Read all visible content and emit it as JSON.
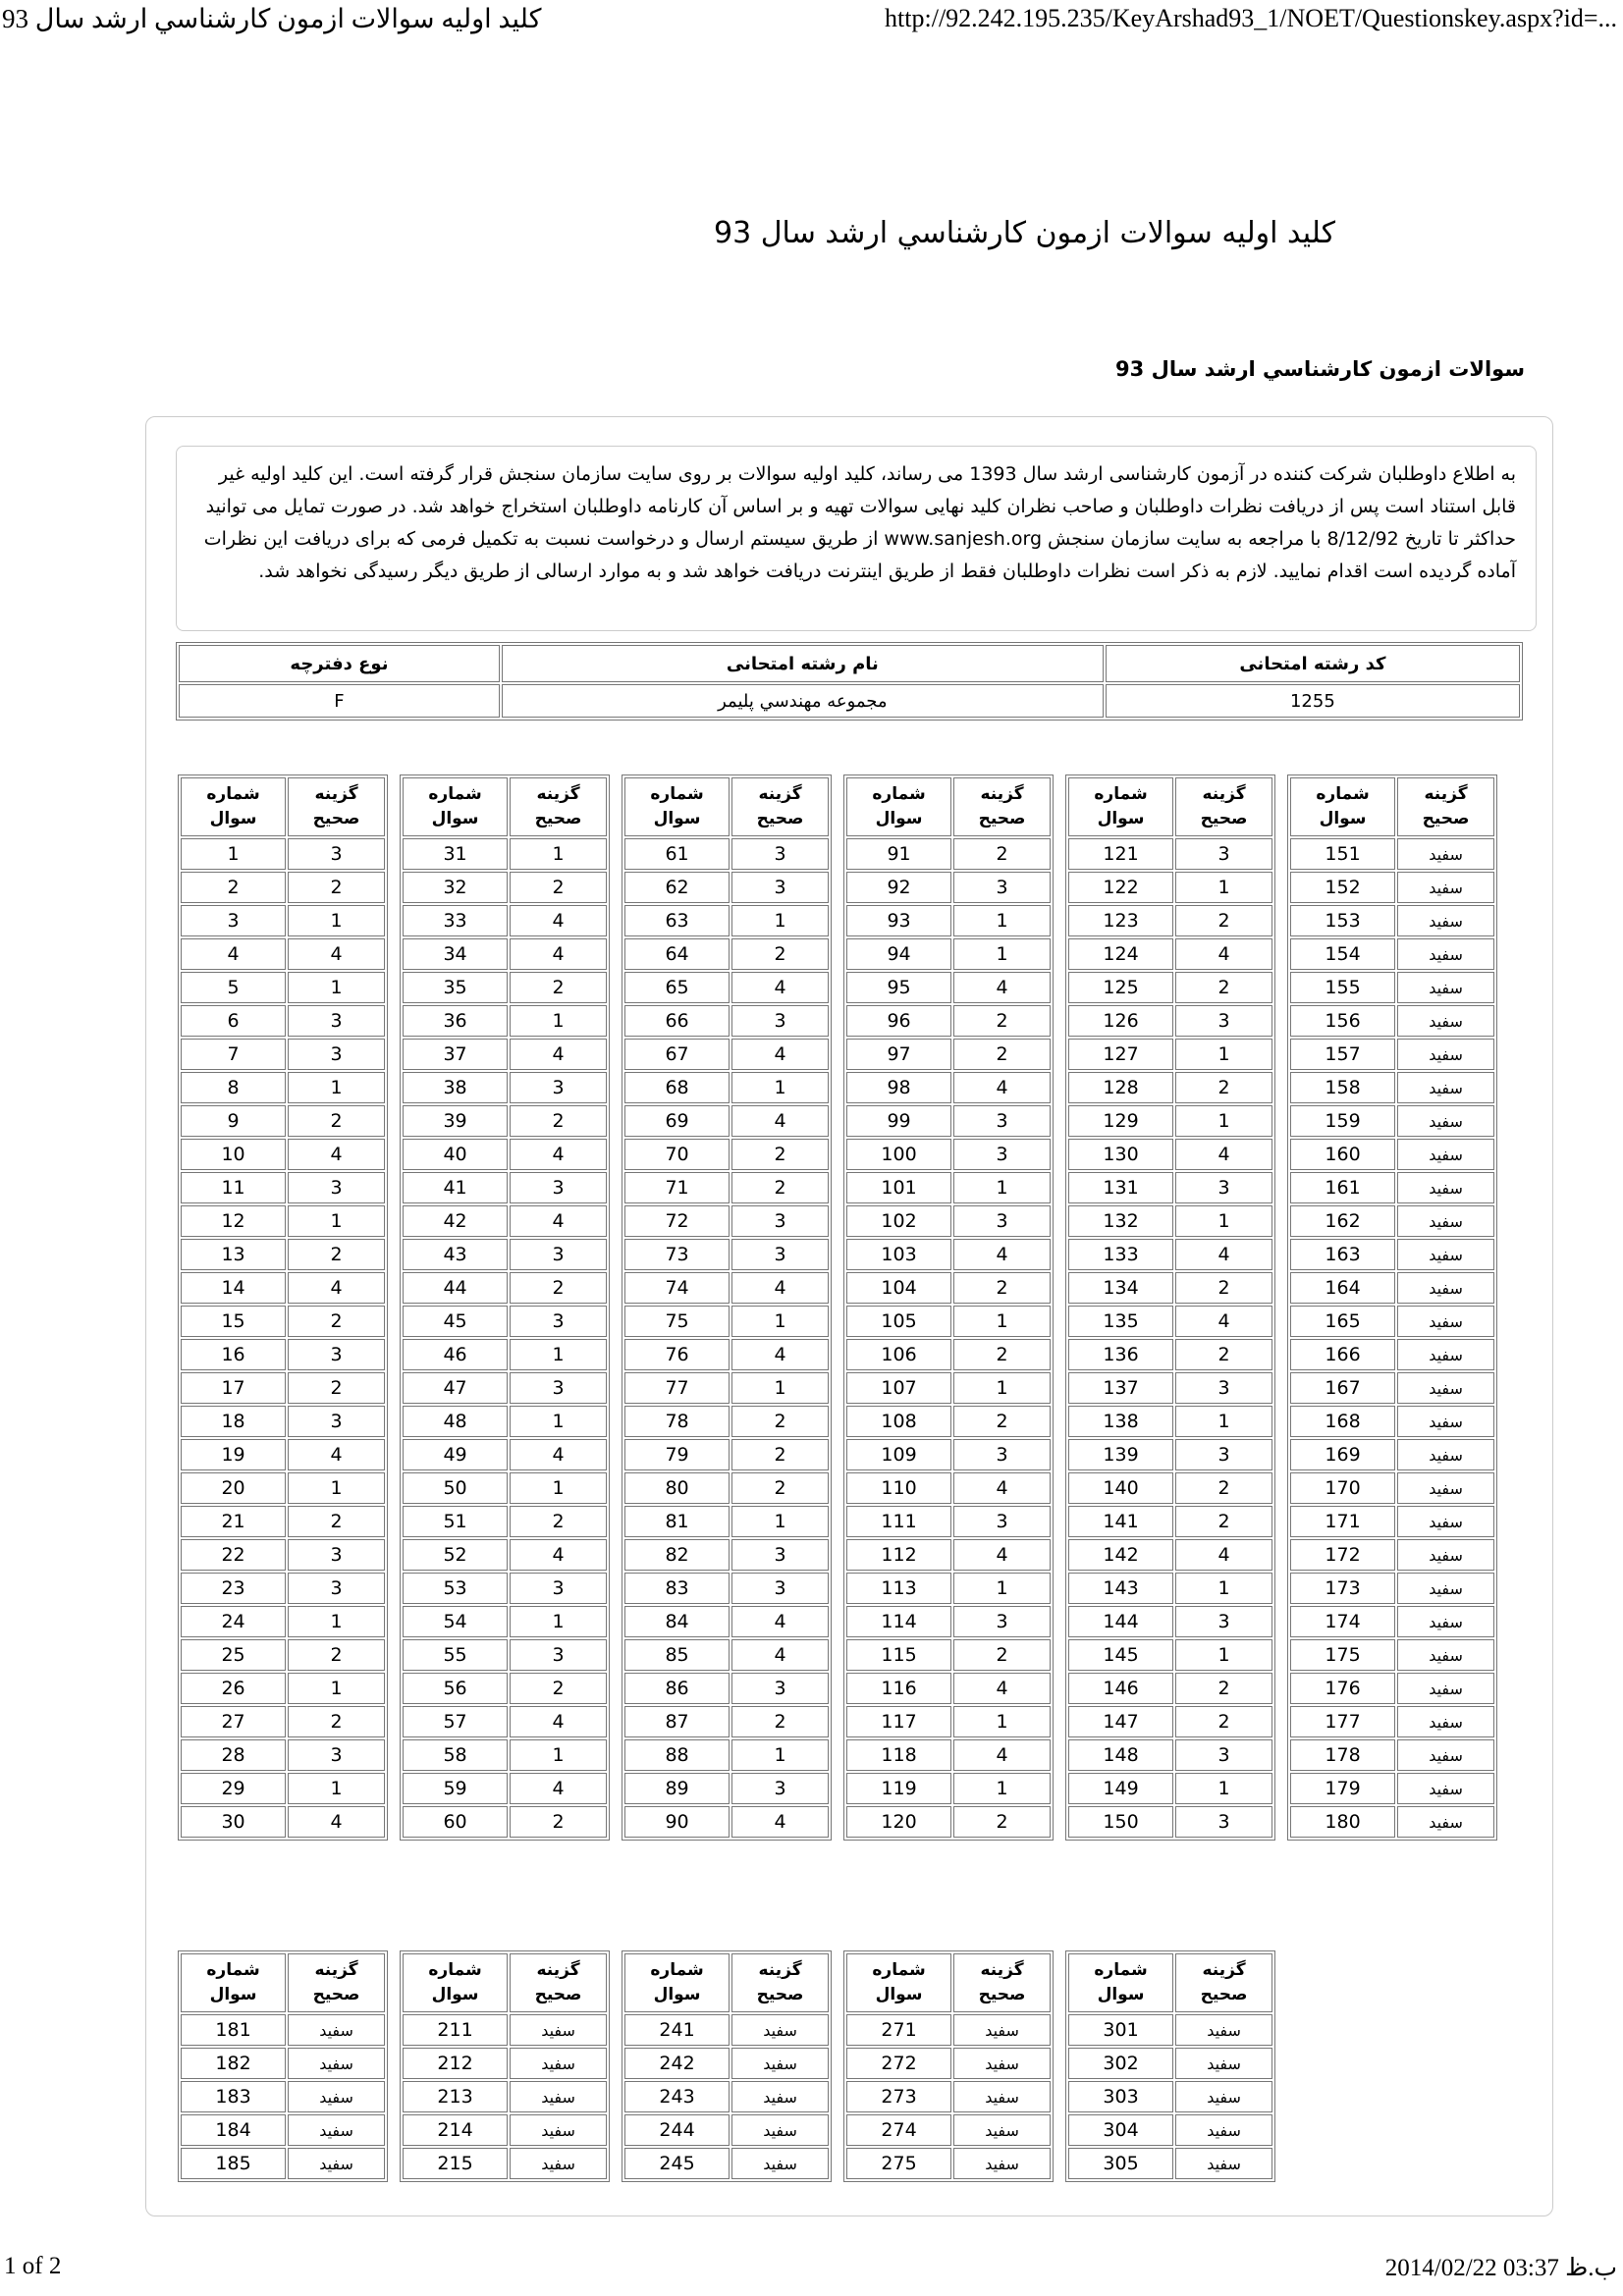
{
  "print_header": {
    "doc_title": "کلید اولیه سوالات ازمون کارشناسي ارشد سال 93",
    "url": "http://92.242.195.235/KeyArshad93_1/NOET/Questionskey.aspx?id=..."
  },
  "page": {
    "title": "کلید اولیه سوالات ازمون کارشناسي ارشد سال 93",
    "subtitle": "سوالات ازمون کارشناسي ارشد سال 93"
  },
  "notice": {
    "text": "به اطلاع داوطلبان شرکت کننده در آزمون کارشناسی ارشد سال 1393 می رساند، کلید اولیه سوالات بر روی سایت سازمان سنجش قرار گرفته است. این کلید اولیه غیر قابل استناد است پس از دریافت نظرات داوطلبان و صاحب نظران کلید نهایی سوالات تهیه و بر اساس آن کارنامه داوطلبان استخراج خواهد شد. در صورت تمایل می توانید حداکثر تا تاریخ 8/12/92 با مراجعه به سایت سازمان سنجش www.sanjesh.org از طریق سیستم ارسال و درخواست نسبت به تکمیل فرمی که برای دریافت این نظرات آماده گردیده است اقدام نمایید. لازم به ذکر است نظرات داوطلبان فقط از طریق اینترنت دریافت خواهد شد و به موارد ارسالی از طریق دیگر رسیدگی نخواهد شد."
  },
  "info_table": {
    "code_header": "کد رشته امتحانی",
    "name_header": "نام رشته امتحانی",
    "booklet_header": "نوع دفترچه",
    "code_value": "1255",
    "name_value": "مجموعه مهندسي پليمر",
    "booklet_value": "F"
  },
  "answer_columns": {
    "question": "شماره\nسوال",
    "answer": "گزینه\nصحیح"
  },
  "answer_sections": [
    {
      "id": "answer-section-1",
      "groups": [
        {
          "rows": [
            [
              "1",
              "3"
            ],
            [
              "2",
              "2"
            ],
            [
              "3",
              "1"
            ],
            [
              "4",
              "4"
            ],
            [
              "5",
              "1"
            ],
            [
              "6",
              "3"
            ],
            [
              "7",
              "3"
            ],
            [
              "8",
              "1"
            ],
            [
              "9",
              "2"
            ],
            [
              "10",
              "4"
            ],
            [
              "11",
              "3"
            ],
            [
              "12",
              "1"
            ],
            [
              "13",
              "2"
            ],
            [
              "14",
              "4"
            ],
            [
              "15",
              "2"
            ],
            [
              "16",
              "3"
            ],
            [
              "17",
              "2"
            ],
            [
              "18",
              "3"
            ],
            [
              "19",
              "4"
            ],
            [
              "20",
              "1"
            ],
            [
              "21",
              "2"
            ],
            [
              "22",
              "3"
            ],
            [
              "23",
              "3"
            ],
            [
              "24",
              "1"
            ],
            [
              "25",
              "2"
            ],
            [
              "26",
              "1"
            ],
            [
              "27",
              "2"
            ],
            [
              "28",
              "3"
            ],
            [
              "29",
              "1"
            ],
            [
              "30",
              "4"
            ]
          ]
        },
        {
          "rows": [
            [
              "31",
              "1"
            ],
            [
              "32",
              "2"
            ],
            [
              "33",
              "4"
            ],
            [
              "34",
              "4"
            ],
            [
              "35",
              "2"
            ],
            [
              "36",
              "1"
            ],
            [
              "37",
              "4"
            ],
            [
              "38",
              "3"
            ],
            [
              "39",
              "2"
            ],
            [
              "40",
              "4"
            ],
            [
              "41",
              "3"
            ],
            [
              "42",
              "4"
            ],
            [
              "43",
              "3"
            ],
            [
              "44",
              "2"
            ],
            [
              "45",
              "3"
            ],
            [
              "46",
              "1"
            ],
            [
              "47",
              "3"
            ],
            [
              "48",
              "1"
            ],
            [
              "49",
              "4"
            ],
            [
              "50",
              "1"
            ],
            [
              "51",
              "2"
            ],
            [
              "52",
              "4"
            ],
            [
              "53",
              "3"
            ],
            [
              "54",
              "1"
            ],
            [
              "55",
              "3"
            ],
            [
              "56",
              "2"
            ],
            [
              "57",
              "4"
            ],
            [
              "58",
              "1"
            ],
            [
              "59",
              "4"
            ],
            [
              "60",
              "2"
            ]
          ]
        },
        {
          "rows": [
            [
              "61",
              "3"
            ],
            [
              "62",
              "3"
            ],
            [
              "63",
              "1"
            ],
            [
              "64",
              "2"
            ],
            [
              "65",
              "4"
            ],
            [
              "66",
              "3"
            ],
            [
              "67",
              "4"
            ],
            [
              "68",
              "1"
            ],
            [
              "69",
              "4"
            ],
            [
              "70",
              "2"
            ],
            [
              "71",
              "2"
            ],
            [
              "72",
              "3"
            ],
            [
              "73",
              "3"
            ],
            [
              "74",
              "4"
            ],
            [
              "75",
              "1"
            ],
            [
              "76",
              "4"
            ],
            [
              "77",
              "1"
            ],
            [
              "78",
              "2"
            ],
            [
              "79",
              "2"
            ],
            [
              "80",
              "2"
            ],
            [
              "81",
              "1"
            ],
            [
              "82",
              "3"
            ],
            [
              "83",
              "3"
            ],
            [
              "84",
              "4"
            ],
            [
              "85",
              "4"
            ],
            [
              "86",
              "3"
            ],
            [
              "87",
              "2"
            ],
            [
              "88",
              "1"
            ],
            [
              "89",
              "3"
            ],
            [
              "90",
              "4"
            ]
          ]
        },
        {
          "rows": [
            [
              "91",
              "2"
            ],
            [
              "92",
              "3"
            ],
            [
              "93",
              "1"
            ],
            [
              "94",
              "1"
            ],
            [
              "95",
              "4"
            ],
            [
              "96",
              "2"
            ],
            [
              "97",
              "2"
            ],
            [
              "98",
              "4"
            ],
            [
              "99",
              "3"
            ],
            [
              "100",
              "3"
            ],
            [
              "101",
              "1"
            ],
            [
              "102",
              "3"
            ],
            [
              "103",
              "4"
            ],
            [
              "104",
              "2"
            ],
            [
              "105",
              "1"
            ],
            [
              "106",
              "2"
            ],
            [
              "107",
              "1"
            ],
            [
              "108",
              "2"
            ],
            [
              "109",
              "3"
            ],
            [
              "110",
              "4"
            ],
            [
              "111",
              "3"
            ],
            [
              "112",
              "4"
            ],
            [
              "113",
              "1"
            ],
            [
              "114",
              "3"
            ],
            [
              "115",
              "2"
            ],
            [
              "116",
              "4"
            ],
            [
              "117",
              "1"
            ],
            [
              "118",
              "4"
            ],
            [
              "119",
              "1"
            ],
            [
              "120",
              "2"
            ]
          ]
        },
        {
          "rows": [
            [
              "121",
              "3"
            ],
            [
              "122",
              "1"
            ],
            [
              "123",
              "2"
            ],
            [
              "124",
              "4"
            ],
            [
              "125",
              "2"
            ],
            [
              "126",
              "3"
            ],
            [
              "127",
              "1"
            ],
            [
              "128",
              "2"
            ],
            [
              "129",
              "1"
            ],
            [
              "130",
              "4"
            ],
            [
              "131",
              "3"
            ],
            [
              "132",
              "1"
            ],
            [
              "133",
              "4"
            ],
            [
              "134",
              "2"
            ],
            [
              "135",
              "4"
            ],
            [
              "136",
              "2"
            ],
            [
              "137",
              "3"
            ],
            [
              "138",
              "1"
            ],
            [
              "139",
              "3"
            ],
            [
              "140",
              "2"
            ],
            [
              "141",
              "2"
            ],
            [
              "142",
              "4"
            ],
            [
              "143",
              "1"
            ],
            [
              "144",
              "3"
            ],
            [
              "145",
              "1"
            ],
            [
              "146",
              "2"
            ],
            [
              "147",
              "2"
            ],
            [
              "148",
              "3"
            ],
            [
              "149",
              "1"
            ],
            [
              "150",
              "3"
            ]
          ]
        },
        {
          "rows": [
            [
              "151",
              "سفید"
            ],
            [
              "152",
              "سفید"
            ],
            [
              "153",
              "سفید"
            ],
            [
              "154",
              "سفید"
            ],
            [
              "155",
              "سفید"
            ],
            [
              "156",
              "سفید"
            ],
            [
              "157",
              "سفید"
            ],
            [
              "158",
              "سفید"
            ],
            [
              "159",
              "سفید"
            ],
            [
              "160",
              "سفید"
            ],
            [
              "161",
              "سفید"
            ],
            [
              "162",
              "سفید"
            ],
            [
              "163",
              "سفید"
            ],
            [
              "164",
              "سفید"
            ],
            [
              "165",
              "سفید"
            ],
            [
              "166",
              "سفید"
            ],
            [
              "167",
              "سفید"
            ],
            [
              "168",
              "سفید"
            ],
            [
              "169",
              "سفید"
            ],
            [
              "170",
              "سفید"
            ],
            [
              "171",
              "سفید"
            ],
            [
              "172",
              "سفید"
            ],
            [
              "173",
              "سفید"
            ],
            [
              "174",
              "سفید"
            ],
            [
              "175",
              "سفید"
            ],
            [
              "176",
              "سفید"
            ],
            [
              "177",
              "سفید"
            ],
            [
              "178",
              "سفید"
            ],
            [
              "179",
              "سفید"
            ],
            [
              "180",
              "سفید"
            ]
          ]
        }
      ]
    },
    {
      "id": "answer-section-2",
      "groups": [
        {
          "rows": [
            [
              "181",
              "سفید"
            ],
            [
              "182",
              "سفید"
            ],
            [
              "183",
              "سفید"
            ],
            [
              "184",
              "سفید"
            ],
            [
              "185",
              "سفید"
            ]
          ]
        },
        {
          "rows": [
            [
              "211",
              "سفید"
            ],
            [
              "212",
              "سفید"
            ],
            [
              "213",
              "سفید"
            ],
            [
              "214",
              "سفید"
            ],
            [
              "215",
              "سفید"
            ]
          ]
        },
        {
          "rows": [
            [
              "241",
              "سفید"
            ],
            [
              "242",
              "سفید"
            ],
            [
              "243",
              "سفید"
            ],
            [
              "244",
              "سفید"
            ],
            [
              "245",
              "سفید"
            ]
          ]
        },
        {
          "rows": [
            [
              "271",
              "سفید"
            ],
            [
              "272",
              "سفید"
            ],
            [
              "273",
              "سفید"
            ],
            [
              "274",
              "سفید"
            ],
            [
              "275",
              "سفید"
            ]
          ]
        },
        {
          "rows": [
            [
              "301",
              "سفید"
            ],
            [
              "302",
              "سفید"
            ],
            [
              "303",
              "سفید"
            ],
            [
              "304",
              "سفید"
            ],
            [
              "305",
              "سفید"
            ]
          ]
        }
      ]
    }
  ],
  "footer": {
    "page_number": "1 of 2",
    "datetime": "2014/02/22 03:37 ب.ظ"
  }
}
